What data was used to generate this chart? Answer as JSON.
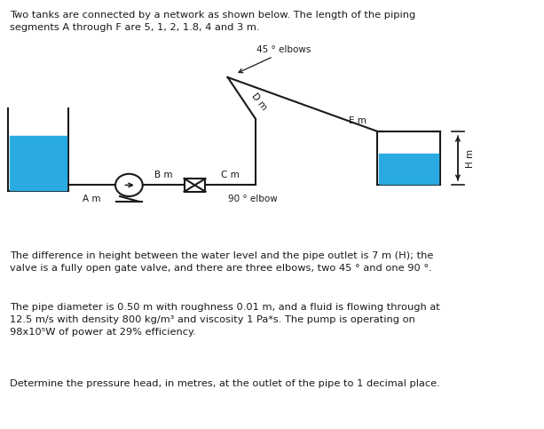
{
  "title_text": "Two tanks are connected by a network as shown below. The length of the piping\nsegments A through F are 5, 1, 2, 1.8, 4 and 3 m.",
  "para1": "The difference in height between the water level and the pipe outlet is 7 m (H); the\nvalve is a fully open gate valve, and there are three elbows, two 45 ° and one 90 °.",
  "para2": "The pipe diameter is 0.50 m with roughness 0.01 m, and a fluid is flowing through at\n12.5 m/s with density 800 kg/m³ and viscosity 1 Pa*s. The pump is operating on\n98x10⁵W of power at 29% efficiency.",
  "para3": "Determine the pressure head, in metres, at the outlet of the pipe to 1 decimal place.",
  "bg_color": "#ffffff",
  "text_color": "#1a1a1a",
  "pipe_color": "#1a1a1a",
  "water_color": "#29abe2",
  "label_45elbow": "45 ° elbows",
  "label_90elbow": "90 ° elbow",
  "label_Am": "A m",
  "label_Bm": "B m",
  "label_Cm": "C m",
  "label_Dm": "D m",
  "label_Em": "E m",
  "label_Hm": "H m"
}
